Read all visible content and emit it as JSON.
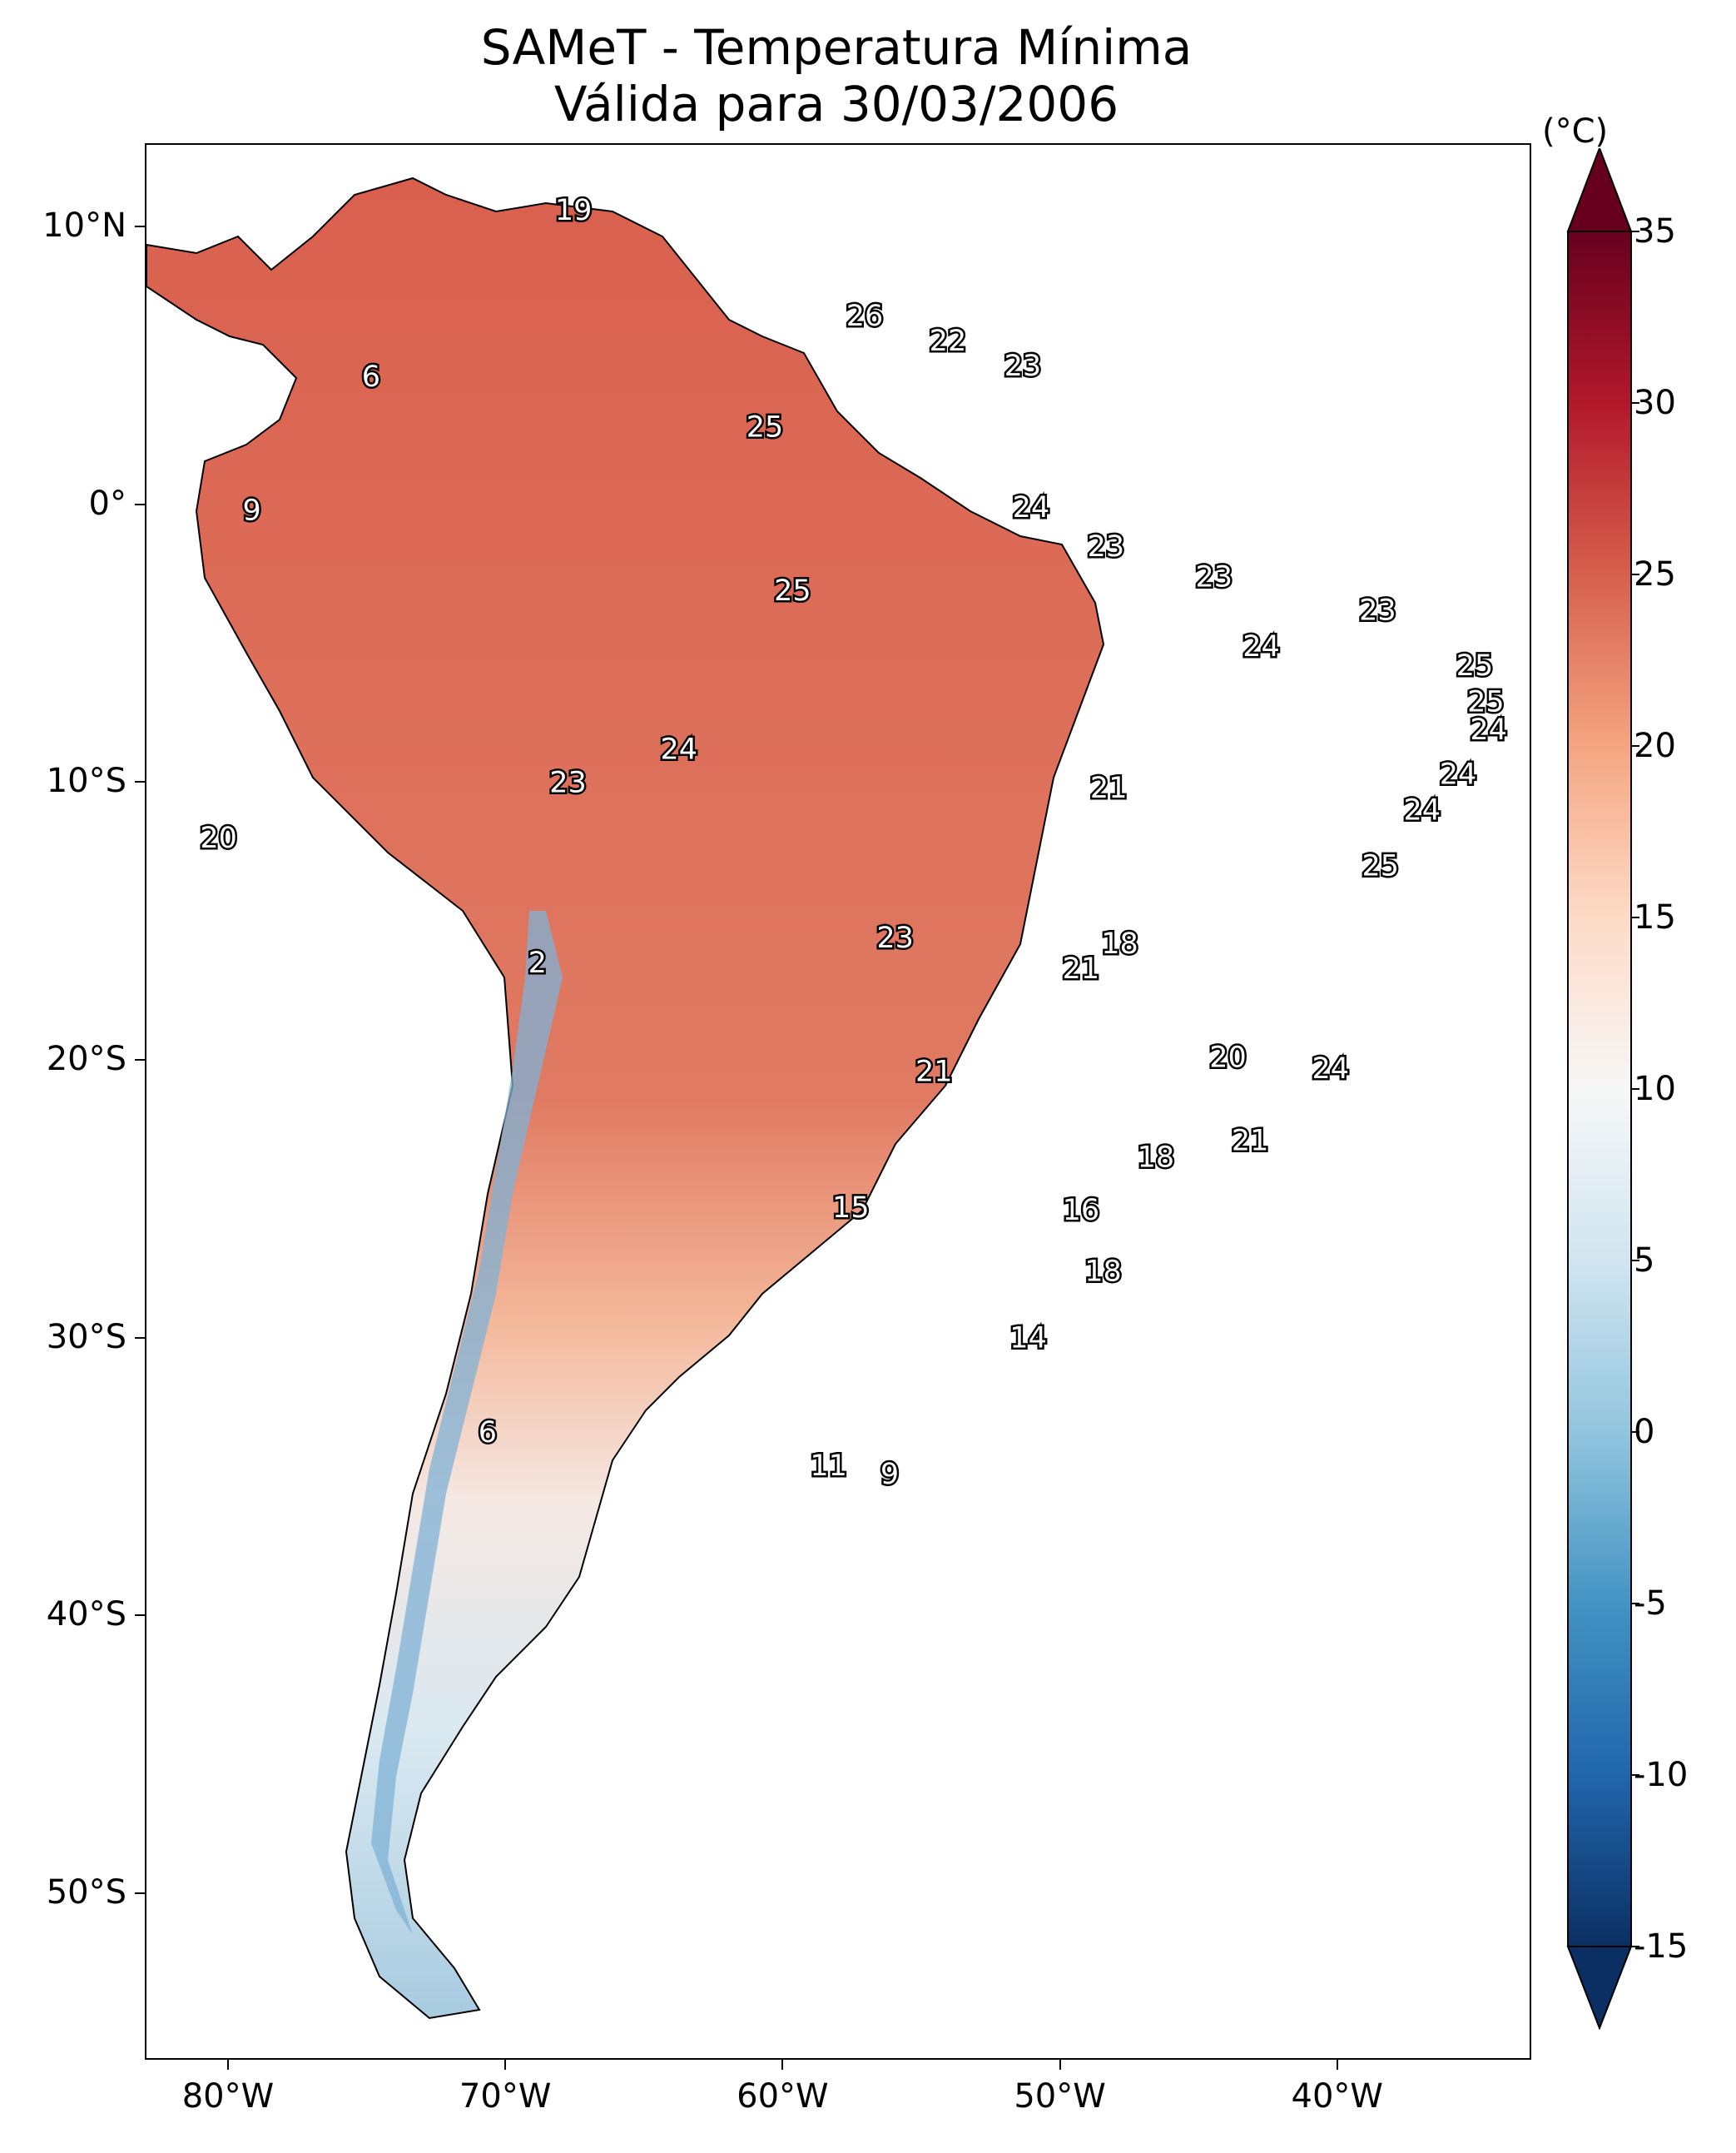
{
  "title": {
    "line1": "SAMeT - Temperatura Mínima",
    "line2": "Válida para 30/03/2006"
  },
  "map": {
    "lat_ticks": [
      "10°N",
      "0°",
      "10°S",
      "20°S",
      "30°S",
      "40°S",
      "50°S"
    ],
    "lon_ticks": [
      "80°W",
      "70°W",
      "60°W",
      "50°W",
      "40°W"
    ],
    "lat_range": [
      -56,
      13
    ],
    "lon_range": [
      -83,
      -33
    ]
  },
  "colorbar": {
    "unit": "(°C)",
    "ticks": [
      "35",
      "30",
      "25",
      "20",
      "15",
      "10",
      "5",
      "0",
      "-5",
      "-10",
      "-15"
    ],
    "min": -15,
    "max": 35,
    "colors": [
      "#0b2f63",
      "#2166ac",
      "#4393c3",
      "#92c5de",
      "#d1e5f0",
      "#f7f7f7",
      "#fddbc7",
      "#f4a582",
      "#d6604d",
      "#b2182b",
      "#67001f"
    ]
  },
  "station_values": [
    {
      "value": "19",
      "lon": -67.6,
      "lat": 10.6
    },
    {
      "value": "26",
      "lon": -57.1,
      "lat": 6.8
    },
    {
      "value": "22",
      "lon": -54.1,
      "lat": 5.9
    },
    {
      "value": "23",
      "lon": -51.4,
      "lat": 5.0
    },
    {
      "value": "6",
      "lon": -74.9,
      "lat": 4.6
    },
    {
      "value": "25",
      "lon": -60.7,
      "lat": 2.8
    },
    {
      "value": "9",
      "lon": -79.2,
      "lat": -0.2
    },
    {
      "value": "24",
      "lon": -51.1,
      "lat": -0.1
    },
    {
      "value": "23",
      "lon": -48.4,
      "lat": -1.5
    },
    {
      "value": "23",
      "lon": -44.5,
      "lat": -2.6
    },
    {
      "value": "23",
      "lon": -38.6,
      "lat": -3.8
    },
    {
      "value": "25",
      "lon": -59.7,
      "lat": -3.1
    },
    {
      "value": "24",
      "lon": -42.8,
      "lat": -5.1
    },
    {
      "value": "25",
      "lon": -35.1,
      "lat": -5.8
    },
    {
      "value": "25",
      "lon": -34.7,
      "lat": -7.1
    },
    {
      "value": "24",
      "lon": -34.6,
      "lat": -8.1
    },
    {
      "value": "24",
      "lon": -63.8,
      "lat": -8.8
    },
    {
      "value": "23",
      "lon": -67.8,
      "lat": -10.0
    },
    {
      "value": "21",
      "lon": -48.3,
      "lat": -10.2
    },
    {
      "value": "24",
      "lon": -35.7,
      "lat": -9.7
    },
    {
      "value": "24",
      "lon": -37.0,
      "lat": -11.0
    },
    {
      "value": "20",
      "lon": -80.4,
      "lat": -12.0
    },
    {
      "value": "25",
      "lon": -38.5,
      "lat": -13.0
    },
    {
      "value": "23",
      "lon": -56.0,
      "lat": -15.6
    },
    {
      "value": "18",
      "lon": -47.9,
      "lat": -15.8
    },
    {
      "value": "21",
      "lon": -49.3,
      "lat": -16.7
    },
    {
      "value": "2",
      "lon": -68.9,
      "lat": -16.5
    },
    {
      "value": "20",
      "lon": -44.0,
      "lat": -19.9
    },
    {
      "value": "24",
      "lon": -40.3,
      "lat": -20.3
    },
    {
      "value": "21",
      "lon": -54.6,
      "lat": -20.4
    },
    {
      "value": "21",
      "lon": -43.2,
      "lat": -22.9
    },
    {
      "value": "18",
      "lon": -46.6,
      "lat": -23.5
    },
    {
      "value": "15",
      "lon": -57.6,
      "lat": -25.3
    },
    {
      "value": "16",
      "lon": -49.3,
      "lat": -25.4
    },
    {
      "value": "18",
      "lon": -48.5,
      "lat": -27.6
    },
    {
      "value": "14",
      "lon": -51.2,
      "lat": -30.0
    },
    {
      "value": "6",
      "lon": -70.7,
      "lat": -33.4
    },
    {
      "value": "11",
      "lon": -58.4,
      "lat": -34.6
    },
    {
      "value": "9",
      "lon": -56.2,
      "lat": -34.9
    }
  ]
}
